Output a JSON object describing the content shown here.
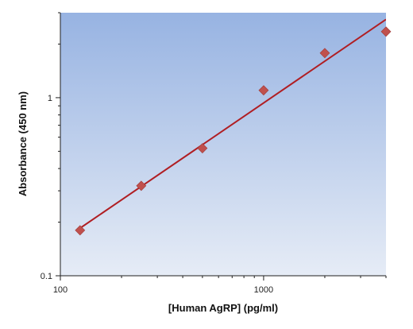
{
  "chart_data": {
    "type": "scatter",
    "title": "",
    "xlabel": "[Human AgRP] (pg/ml)",
    "ylabel": "Absorbance (450 nm)",
    "x_scale": "log",
    "y_scale": "log",
    "xlim": [
      100,
      4000
    ],
    "ylim": [
      0.1,
      3
    ],
    "x_ticks": [
      {
        "value": 100,
        "label": "100"
      },
      {
        "value": 1000,
        "label": "1000"
      }
    ],
    "y_ticks": [
      {
        "value": 0.1,
        "label": "0.1"
      },
      {
        "value": 1,
        "label": "1"
      }
    ],
    "grid": false,
    "legend": "none",
    "series": [
      {
        "points": [
          {
            "x": 125,
            "y": 0.18
          },
          {
            "x": 250,
            "y": 0.32
          },
          {
            "x": 500,
            "y": 0.52
          },
          {
            "x": 1000,
            "y": 1.1
          },
          {
            "x": 2000,
            "y": 1.78
          },
          {
            "x": 4000,
            "y": 2.35
          }
        ],
        "marker": "diamond",
        "color": "#C0504D"
      }
    ],
    "fit_line": {
      "x": [
        125,
        4000
      ],
      "y": [
        0.185,
        2.75
      ],
      "color": "#B01E23"
    },
    "colors": {
      "plot_background_top": "#97B3E2",
      "plot_background_bottom": "#E6ECF6",
      "axis": "#1F1F1F"
    }
  }
}
